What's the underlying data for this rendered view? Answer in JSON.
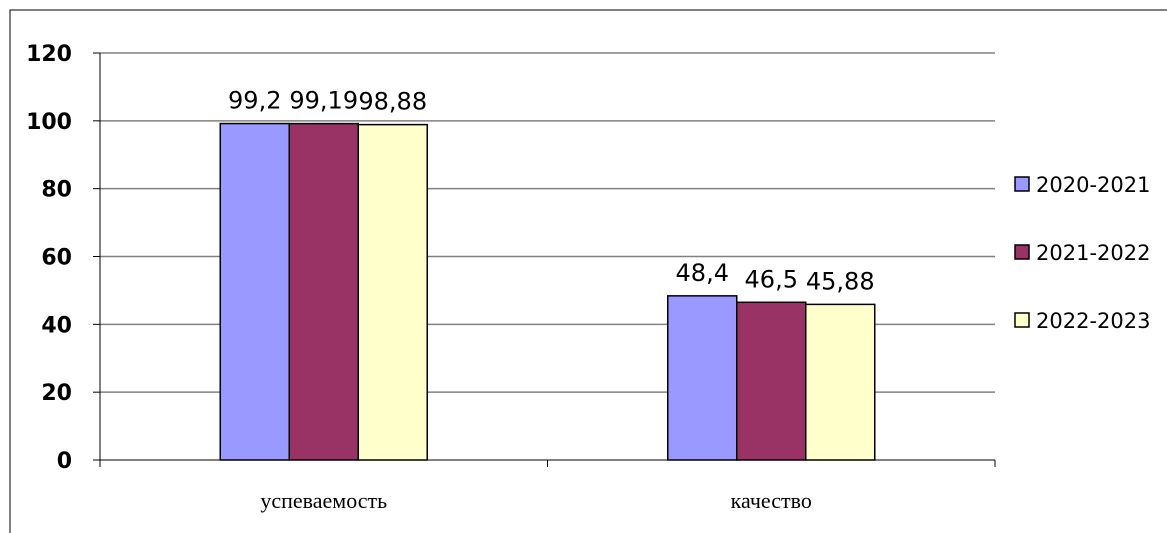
{
  "chart_data": {
    "type": "bar",
    "title": "",
    "xlabel": "",
    "ylabel": "",
    "categories": [
      "успеваемость",
      "качество"
    ],
    "series": [
      {
        "name": "2020-2021",
        "color": "#9999ff",
        "values": [
          99.2,
          48.4
        ],
        "labels": [
          "99,2",
          "48,4"
        ]
      },
      {
        "name": "2021-2022",
        "color": "#993366",
        "values": [
          99.19,
          46.5
        ],
        "labels": [
          "99,19",
          "46,5"
        ]
      },
      {
        "name": "2022-2023",
        "color": "#ffffcc",
        "values": [
          98.88,
          45.88
        ],
        "labels": [
          "98,88",
          "45,88"
        ]
      }
    ],
    "ylim": [
      0,
      120
    ],
    "yticks": [
      "0",
      "20",
      "40",
      "60",
      "80",
      "100",
      "120"
    ],
    "grid": true,
    "legend_position": "right"
  }
}
